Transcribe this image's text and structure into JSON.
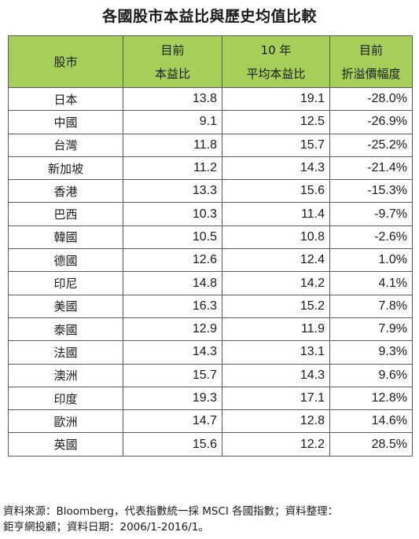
{
  "title": "各國股市本益比與歷史均值比較",
  "table": {
    "headers": {
      "market": "股市",
      "pe_line1": "目前",
      "pe_line2": "本益比",
      "avg_line1": "10 年",
      "avg_line2": "平均本益比",
      "disc_line1": "目前",
      "disc_line2": "折溢價幅度"
    },
    "rows": [
      {
        "market": "日本",
        "pe": "13.8",
        "avg": "19.1",
        "premium": "-28.0%"
      },
      {
        "market": "中國",
        "pe": "9.1",
        "avg": "12.5",
        "premium": "-26.9%"
      },
      {
        "market": "台灣",
        "pe": "11.8",
        "avg": "15.7",
        "premium": "-25.2%"
      },
      {
        "market": "新加坡",
        "pe": "11.2",
        "avg": "14.3",
        "premium": "-21.4%"
      },
      {
        "market": "香港",
        "pe": "13.3",
        "avg": "15.6",
        "premium": "-15.3%"
      },
      {
        "market": "巴西",
        "pe": "10.3",
        "avg": "11.4",
        "premium": "-9.7%"
      },
      {
        "market": "韓國",
        "pe": "10.5",
        "avg": "10.8",
        "premium": "-2.6%"
      },
      {
        "market": "德國",
        "pe": "12.6",
        "avg": "12.4",
        "premium": "1.0%"
      },
      {
        "market": "印尼",
        "pe": "14.8",
        "avg": "14.2",
        "premium": "4.1%"
      },
      {
        "market": "美國",
        "pe": "16.3",
        "avg": "15.2",
        "premium": "7.8%"
      },
      {
        "market": "泰國",
        "pe": "12.9",
        "avg": "11.9",
        "premium": "7.9%"
      },
      {
        "market": "法國",
        "pe": "14.3",
        "avg": "13.1",
        "premium": "9.3%"
      },
      {
        "market": "澳洲",
        "pe": "15.7",
        "avg": "14.3",
        "premium": "9.6%"
      },
      {
        "market": "印度",
        "pe": "19.3",
        "avg": "17.1",
        "premium": "12.8%"
      },
      {
        "market": "歐洲",
        "pe": "14.7",
        "avg": "12.8",
        "premium": "14.6%"
      },
      {
        "market": "英國",
        "pe": "15.6",
        "avg": "12.2",
        "premium": "28.5%"
      }
    ]
  },
  "footnote": {
    "line1": "資料來源：Bloomberg，代表指數統一採 MSCI 各國指數；資料整理：",
    "line2": "鉅亨網投顧；資料日期：2006/1-2016/1。"
  },
  "colors": {
    "header_bg": "#a6cf5a",
    "border": "#5a5a5a",
    "text": "#1a1a1a"
  }
}
